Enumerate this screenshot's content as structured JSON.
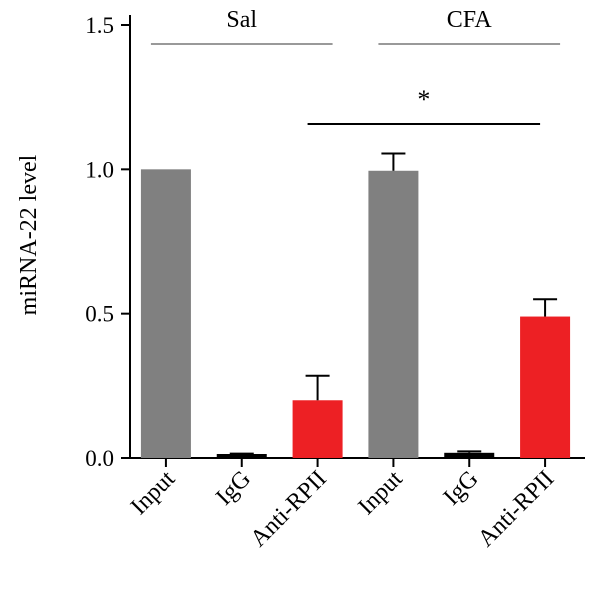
{
  "chart_data": {
    "type": "bar",
    "ylabel": "miRNA-22 level",
    "ylim": [
      0,
      1.5
    ],
    "yticks": [
      "0.0",
      "0.5",
      "1.0",
      "1.5"
    ],
    "categories": [
      "Input",
      "IgG",
      "Anti-RPII",
      "Input",
      "IgG",
      "Anti-RPII"
    ],
    "values": [
      1.0,
      0.01,
      0.2,
      0.995,
      0.018,
      0.49
    ],
    "errors": [
      0,
      0.005,
      0.085,
      0.06,
      0.005,
      0.06
    ],
    "bar_colors": [
      "#808080",
      "#000000",
      "#ed2024",
      "#808080",
      "#000000",
      "#ed2024"
    ],
    "groups": [
      {
        "label": "Sal",
        "line_color": "#999999"
      },
      {
        "label": "CFA",
        "line_color": "#999999"
      }
    ],
    "significance": {
      "mark": "*"
    }
  }
}
